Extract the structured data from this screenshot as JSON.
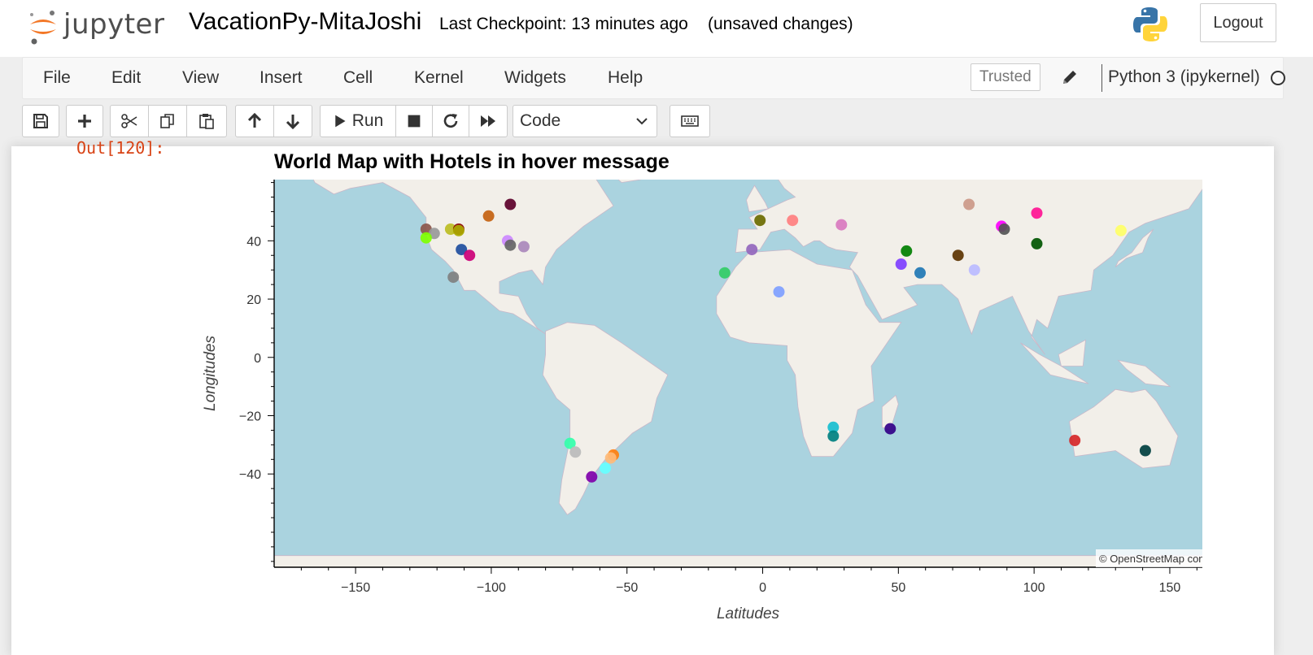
{
  "header": {
    "logo_text": "jupyter",
    "notebook_title": "VacationPy-MitaJoshi",
    "checkpoint": "Last Checkpoint: 13 minutes ago",
    "autosave_status": "(unsaved changes)",
    "logout_label": "Logout",
    "python_logo_icon": "python-logo-icon"
  },
  "menu": {
    "items": [
      "File",
      "Edit",
      "View",
      "Insert",
      "Cell",
      "Kernel",
      "Widgets",
      "Help"
    ],
    "trusted_label": "Trusted",
    "kernel_name": "Python 3 (ipykernel)"
  },
  "toolbar": {
    "run_label": "Run",
    "cell_type": "Code",
    "icons": [
      "save-icon",
      "plus-icon",
      "cut-icon",
      "copy-icon",
      "paste-icon",
      "arrow-up-icon",
      "arrow-down-icon",
      "play-icon",
      "stop-icon",
      "restart-icon",
      "fast-forward-icon",
      "keyboard-icon"
    ]
  },
  "cell": {
    "out_prompt": "Out[120]:"
  },
  "chart_data": {
    "type": "scatter",
    "title": "World Map with Hotels in hover message",
    "xlabel": "Latitudes",
    "ylabel": "Longitudes",
    "xlim": [
      -180,
      162
    ],
    "ylim": [
      -72,
      61
    ],
    "x_ticks": [
      -150,
      -100,
      -50,
      0,
      50,
      100,
      150
    ],
    "y_ticks": [
      40,
      20,
      0,
      -20,
      -40
    ],
    "attribution": "© OpenStreetMap contributors",
    "attribution_link": "OpenStreetMap",
    "basemap": "OpenStreetMap tiles",
    "points": [
      {
        "x": -124,
        "y": 44,
        "color": "#8c564b"
      },
      {
        "x": -121,
        "y": 42.5,
        "color": "#999999"
      },
      {
        "x": -124,
        "y": 41,
        "color": "#7fff00"
      },
      {
        "x": -115,
        "y": 44,
        "color": "#bcbd22"
      },
      {
        "x": -112,
        "y": 44,
        "color": "#8b0000"
      },
      {
        "x": -112,
        "y": 43.5,
        "color": "#aaaa00"
      },
      {
        "x": -101,
        "y": 48.5,
        "color": "#c46210"
      },
      {
        "x": -93,
        "y": 52.5,
        "color": "#5c0029"
      },
      {
        "x": -94,
        "y": 40,
        "color": "#cc88ff"
      },
      {
        "x": -93,
        "y": 38.5,
        "color": "#666666"
      },
      {
        "x": -88,
        "y": 38,
        "color": "#aa88bb"
      },
      {
        "x": -111,
        "y": 37,
        "color": "#1f4e9e"
      },
      {
        "x": -108,
        "y": 35,
        "color": "#cc0077"
      },
      {
        "x": -114,
        "y": 27.5,
        "color": "#808080"
      },
      {
        "x": -14,
        "y": 29,
        "color": "#33cc66"
      },
      {
        "x": -1,
        "y": 47,
        "color": "#6b6b00"
      },
      {
        "x": 11,
        "y": 47,
        "color": "#ff7f7f"
      },
      {
        "x": 29,
        "y": 45.5,
        "color": "#d97abf"
      },
      {
        "x": -4,
        "y": 37,
        "color": "#9467bd"
      },
      {
        "x": 6,
        "y": 22.5,
        "color": "#7f9fff"
      },
      {
        "x": 53,
        "y": 36.5,
        "color": "#007f00"
      },
      {
        "x": 51,
        "y": 32,
        "color": "#7f3fff"
      },
      {
        "x": 58,
        "y": 29,
        "color": "#1f77b4"
      },
      {
        "x": 76,
        "y": 52.5,
        "color": "#cc9988"
      },
      {
        "x": 72,
        "y": 35,
        "color": "#5c3300"
      },
      {
        "x": 78,
        "y": 30,
        "color": "#bbbbff"
      },
      {
        "x": 88,
        "y": 45,
        "color": "#ff00ff"
      },
      {
        "x": 89,
        "y": 44,
        "color": "#555555"
      },
      {
        "x": 101,
        "y": 49.5,
        "color": "#ff1493"
      },
      {
        "x": 101,
        "y": 39,
        "color": "#005500"
      },
      {
        "x": 132,
        "y": 43.5,
        "color": "#ffff66"
      },
      {
        "x": 26,
        "y": -24,
        "color": "#17becf"
      },
      {
        "x": 26,
        "y": -27,
        "color": "#008080"
      },
      {
        "x": 47,
        "y": -24.5,
        "color": "#330088"
      },
      {
        "x": -71,
        "y": -29.5,
        "color": "#33ffaa"
      },
      {
        "x": -69,
        "y": -32.5,
        "color": "#bbbbbb"
      },
      {
        "x": -55,
        "y": -33.5,
        "color": "#ff7f0e"
      },
      {
        "x": -56,
        "y": -34.5,
        "color": "#ffbb78"
      },
      {
        "x": -58,
        "y": -38,
        "color": "#66ffff"
      },
      {
        "x": -63,
        "y": -41,
        "color": "#7f00aa"
      },
      {
        "x": 115,
        "y": -28.5,
        "color": "#d62728"
      },
      {
        "x": 141,
        "y": -32,
        "color": "#003f3f"
      }
    ]
  }
}
